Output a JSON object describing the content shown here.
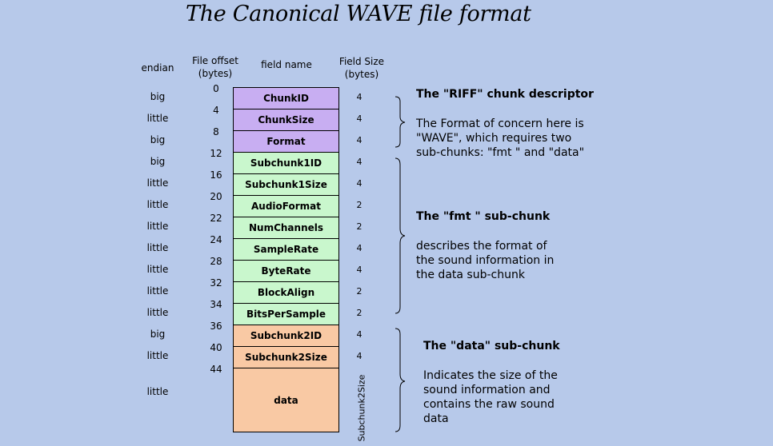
{
  "title": "The Canonical WAVE file format",
  "headers": {
    "endian": "endian",
    "offset_line1": "File offset",
    "offset_line2": "(bytes)",
    "field_name": "field name",
    "size_line1": "Field Size",
    "size_line2": "(bytes)"
  },
  "offsets": [
    "0",
    "4",
    "8",
    "12",
    "16",
    "20",
    "22",
    "24",
    "28",
    "32",
    "34",
    "36",
    "40",
    "44"
  ],
  "fields": [
    {
      "name": "ChunkID",
      "endian": "big",
      "size": "4",
      "group": "riff"
    },
    {
      "name": "ChunkSize",
      "endian": "little",
      "size": "4",
      "group": "riff"
    },
    {
      "name": "Format",
      "endian": "big",
      "size": "4",
      "group": "riff"
    },
    {
      "name": "Subchunk1ID",
      "endian": "big",
      "size": "4",
      "group": "fmt"
    },
    {
      "name": "Subchunk1Size",
      "endian": "little",
      "size": "4",
      "group": "fmt"
    },
    {
      "name": "AudioFormat",
      "endian": "little",
      "size": "2",
      "group": "fmt"
    },
    {
      "name": "NumChannels",
      "endian": "little",
      "size": "2",
      "group": "fmt"
    },
    {
      "name": "SampleRate",
      "endian": "little",
      "size": "4",
      "group": "fmt"
    },
    {
      "name": "ByteRate",
      "endian": "little",
      "size": "4",
      "group": "fmt"
    },
    {
      "name": "BlockAlign",
      "endian": "little",
      "size": "2",
      "group": "fmt"
    },
    {
      "name": "BitsPerSample",
      "endian": "little",
      "size": "2",
      "group": "fmt"
    },
    {
      "name": "Subchunk2ID",
      "endian": "big",
      "size": "4",
      "group": "dat"
    },
    {
      "name": "Subchunk2Size",
      "endian": "little",
      "size": "4",
      "group": "dat"
    },
    {
      "name": "data",
      "endian": "little",
      "size": "Subchunk2Size",
      "group": "dat"
    }
  ],
  "annotations": {
    "riff": {
      "heading": "The \"RIFF\" chunk descriptor",
      "lines": [
        "The Format of concern here is",
        "\"WAVE\", which requires two",
        "sub-chunks: \"fmt \" and \"data\""
      ]
    },
    "fmt": {
      "heading": "The \"fmt \" sub-chunk",
      "lines": [
        "describes the format of",
        "the sound information in",
        "the data sub-chunk"
      ]
    },
    "data": {
      "heading": "The \"data\" sub-chunk",
      "lines": [
        "Indicates the size of the",
        "sound information and",
        "contains the raw sound",
        "data"
      ]
    }
  }
}
